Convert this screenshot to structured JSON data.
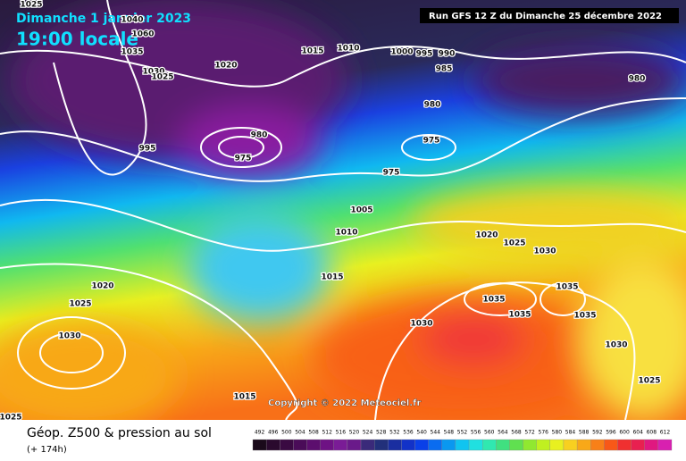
{
  "header": {
    "date": "Dimanche 1 janvier 2023",
    "time": "19:00 locale",
    "run": "Run GFS 12 Z du Dimanche 25 décembre 2022"
  },
  "map": {
    "copyright": "Copyright © 2022 Meteociel.fr",
    "isobar_labels": [
      1025,
      1040,
      1060,
      1035,
      1030,
      1025,
      1020,
      1015,
      1010,
      1000,
      995,
      990,
      985,
      980,
      980,
      995,
      980,
      975,
      975,
      975,
      1005,
      1010,
      1020,
      1025,
      1030,
      1015,
      1020,
      1025,
      1035,
      1035,
      1035,
      1035,
      1030,
      1030,
      1030,
      1025,
      1015,
      1025
    ]
  },
  "footer": {
    "legend_title": "Géop. Z500 & pression au sol",
    "lead_time": "(+ 174h)",
    "colorbar": {
      "levels": [
        492,
        496,
        500,
        504,
        508,
        512,
        516,
        520,
        524,
        528,
        532,
        536,
        540,
        544,
        548,
        552,
        556,
        560,
        564,
        568,
        572,
        576,
        580,
        584,
        588,
        592,
        596,
        600,
        604,
        608,
        612
      ],
      "colors": [
        "#1a0a1a",
        "#2a0a2e",
        "#3a0a42",
        "#4a0c58",
        "#5c0e6e",
        "#6e1284",
        "#7a1c96",
        "#6a1a8a",
        "#3a2a7a",
        "#22307a",
        "#1a2ea0",
        "#1232c8",
        "#0a40e8",
        "#0a6cf0",
        "#0a98f0",
        "#10c4f0",
        "#20e0e0",
        "#30e8b0",
        "#40e080",
        "#60e050",
        "#90e830",
        "#c0f020",
        "#e8f020",
        "#f8d020",
        "#f8a818",
        "#f88018",
        "#f85818",
        "#f03030",
        "#e82050",
        "#e01880",
        "#d820b0"
      ]
    }
  }
}
